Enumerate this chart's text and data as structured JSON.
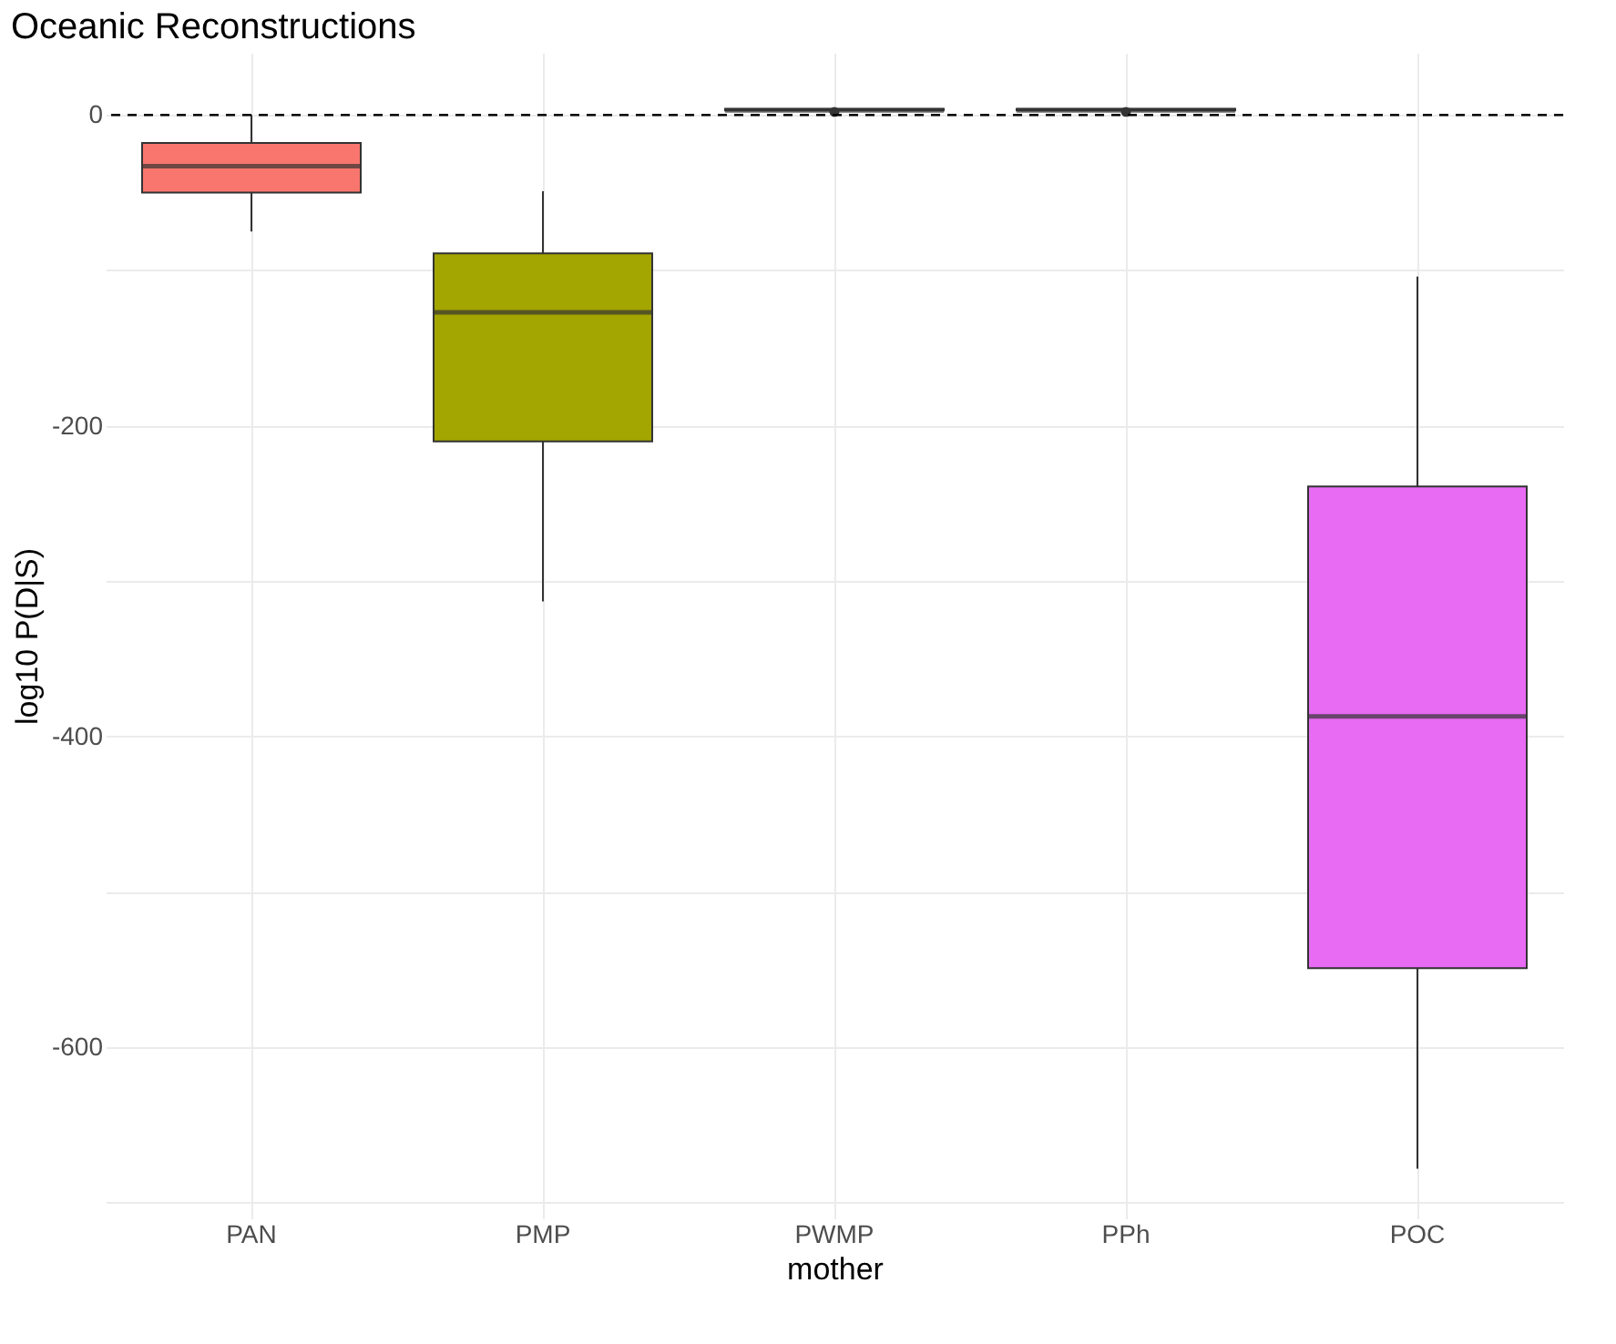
{
  "chart_data": {
    "type": "box",
    "title": "Oceanic Reconstructions",
    "xlabel": "mother",
    "ylabel": "log10 P(D|S)",
    "categories": [
      "PAN",
      "PMP",
      "PWMP",
      "PPh",
      "POC"
    ],
    "colors": [
      "#f8766d",
      "#a3a500",
      "#00bf7d",
      "#00b0f6",
      "#e76bf3"
    ],
    "boxes": [
      {
        "low": -75,
        "q1": -50,
        "median": -33,
        "q3": -18,
        "high": 0
      },
      {
        "low": -313,
        "q1": -210,
        "median": -127,
        "q3": -89,
        "high": -49
      },
      {
        "low": 2,
        "q1": 3,
        "median": 3,
        "q3": 4,
        "high": 4,
        "outliers": [
          2
        ]
      },
      {
        "low": 2,
        "q1": 3,
        "median": 3,
        "q3": 4,
        "high": 4,
        "outliers": [
          2
        ]
      },
      {
        "low": -678,
        "q1": -549,
        "median": -387,
        "q3": -239,
        "high": -104
      }
    ],
    "ylim": [
      -710,
      40
    ],
    "yticks": [
      {
        "value": -700,
        "label": null
      },
      -600,
      {
        "value": -500,
        "label": null
      },
      -400,
      {
        "value": -300,
        "label": null
      },
      -200,
      {
        "value": -100,
        "label": null
      },
      0
    ],
    "ref_lines": [
      {
        "axis": "y",
        "value": 0,
        "line_style": "dashed",
        "color": "#000000"
      }
    ],
    "grid": true,
    "legend": false
  }
}
